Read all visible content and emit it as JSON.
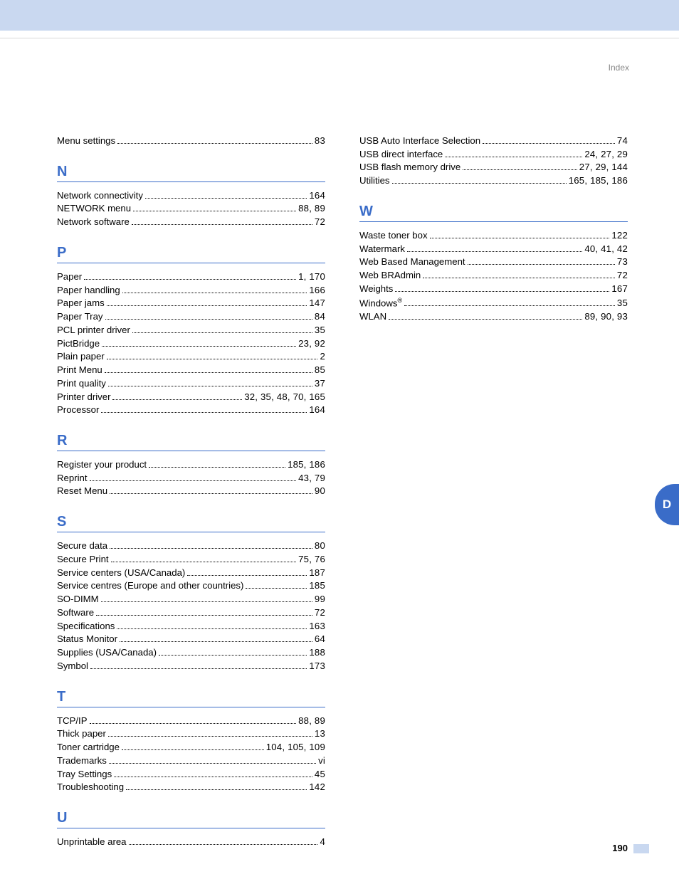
{
  "header_label": "Index",
  "page_number": "190",
  "side_tab": "D",
  "left": {
    "top_entry": {
      "label": "Menu settings",
      "pages": "83"
    },
    "sections": [
      {
        "letter": "N",
        "entries": [
          {
            "label": "Network connectivity",
            "pages": "164"
          },
          {
            "label": "NETWORK menu",
            "pages": "88, 89"
          },
          {
            "label": "Network software",
            "pages": "72"
          }
        ]
      },
      {
        "letter": "P",
        "entries": [
          {
            "label": "Paper",
            "pages": "1, 170"
          },
          {
            "label": "Paper handling",
            "pages": "166"
          },
          {
            "label": "Paper jams",
            "pages": "147"
          },
          {
            "label": "Paper Tray",
            "pages": "84"
          },
          {
            "label": "PCL printer driver",
            "pages": "35"
          },
          {
            "label": "PictBridge",
            "pages": "23, 92"
          },
          {
            "label": "Plain paper",
            "pages": "2"
          },
          {
            "label": "Print Menu",
            "pages": "85"
          },
          {
            "label": "Print quality",
            "pages": "37"
          },
          {
            "label": "Printer driver",
            "pages": "32, 35, 48, 70, 165"
          },
          {
            "label": "Processor",
            "pages": "164"
          }
        ]
      },
      {
        "letter": "R",
        "entries": [
          {
            "label": "Register your product",
            "pages": "185, 186"
          },
          {
            "label": "Reprint",
            "pages": "43, 79"
          },
          {
            "label": "Reset Menu",
            "pages": "90"
          }
        ]
      },
      {
        "letter": "S",
        "entries": [
          {
            "label": "Secure data",
            "pages": "80"
          },
          {
            "label": "Secure Print",
            "pages": "75, 76"
          },
          {
            "label": "Service centers (USA/Canada)",
            "pages": "187"
          },
          {
            "label": "Service centres (Europe and other countries)",
            "pages": "185"
          },
          {
            "label": "SO-DIMM",
            "pages": "99"
          },
          {
            "label": "Software",
            "pages": "72"
          },
          {
            "label": "Specifications",
            "pages": "163"
          },
          {
            "label": "Status Monitor",
            "pages": "64"
          },
          {
            "label": "Supplies (USA/Canada)",
            "pages": "188"
          },
          {
            "label": "Symbol",
            "pages": "173"
          }
        ]
      },
      {
        "letter": "T",
        "entries": [
          {
            "label": "TCP/IP",
            "pages": "88, 89"
          },
          {
            "label": "Thick paper",
            "pages": "13"
          },
          {
            "label": "Toner cartridge",
            "pages": "104, 105, 109"
          },
          {
            "label": "Trademarks",
            "pages": "vi"
          },
          {
            "label": "Tray Settings",
            "pages": "45"
          },
          {
            "label": "Troubleshooting",
            "pages": "142"
          }
        ]
      },
      {
        "letter": "U",
        "entries": [
          {
            "label": "Unprintable area",
            "pages": "4"
          }
        ]
      }
    ]
  },
  "right": {
    "top_entries": [
      {
        "label": "USB Auto Interface Selection",
        "pages": "74"
      },
      {
        "label": "USB direct interface",
        "pages": "24, 27, 29"
      },
      {
        "label": "USB flash memory drive",
        "pages": "27, 29, 144"
      },
      {
        "label": "Utilities",
        "pages": "165, 185, 186"
      }
    ],
    "sections": [
      {
        "letter": "W",
        "entries": [
          {
            "label": "Waste toner box",
            "pages": "122"
          },
          {
            "label": "Watermark",
            "pages": "40, 41, 42"
          },
          {
            "label": "Web Based Management",
            "pages": "73"
          },
          {
            "label": "Web BRAdmin",
            "pages": "72"
          },
          {
            "label": "Weights",
            "pages": "167"
          },
          {
            "label_html": "Windows<sup>®</sup>",
            "pages": "35"
          },
          {
            "label": "WLAN",
            "pages": "89, 90, 93"
          }
        ]
      }
    ]
  }
}
